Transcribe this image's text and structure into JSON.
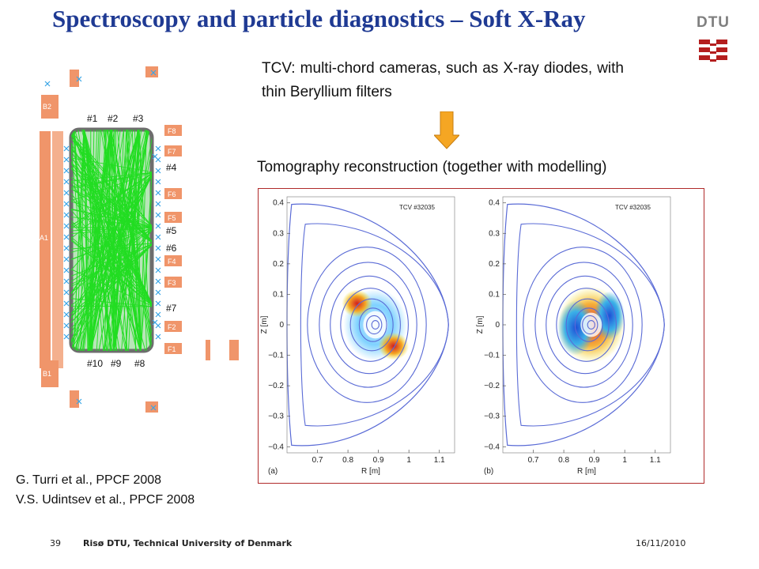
{
  "slide": {
    "title": "Spectroscopy and particle diagnostics – Soft X-Ray",
    "description": "TCV: multi-chord cameras, such as X-ray diodes, with thin Beryllium filters",
    "tomography_title": "Tomography reconstruction (together with modelling)",
    "references": [
      "G. Turri et al., PPCF 2008",
      "V.S. Udintsev et al., PPCF 2008"
    ]
  },
  "logo": {
    "text": "DTU",
    "color": "#b41e1e"
  },
  "footer": {
    "page_number": "39",
    "organization": "Risø DTU, Technical University of Denmark",
    "date": "16/11/2010"
  },
  "diagram": {
    "top_cameras": [
      "#1",
      "#2",
      "#3"
    ],
    "side_cameras": [
      "#4",
      "#5",
      "#6",
      "#7"
    ],
    "bottom_cameras": [
      "#10",
      "#9",
      "#8"
    ],
    "f_ports": [
      "F8",
      "F7",
      "F6",
      "F5",
      "F4",
      "F3",
      "F2",
      "F1"
    ],
    "other_ports": [
      "B2",
      "C2",
      "D2",
      "A1",
      "B1",
      "C1",
      "D1"
    ],
    "port_color": "#f0956a",
    "chord_color": "#22dd22"
  },
  "plots": [
    {
      "panel_label": "(a)",
      "shot_label": "TCV #32035",
      "xlabel": "R [m]",
      "ylabel": "Z [m]",
      "x_ticks": [
        "0.7",
        "0.8",
        "0.9",
        "1",
        "1.1"
      ],
      "y_ticks": [
        "0.4",
        "0.3",
        "0.2",
        "0.1",
        "0",
        "−0.1",
        "−0.2",
        "−0.3",
        "−0.4"
      ]
    },
    {
      "panel_label": "(b)",
      "shot_label": "TCV #32035",
      "xlabel": "R [m]",
      "ylabel": "Z [m]",
      "x_ticks": [
        "0.7",
        "0.8",
        "0.9",
        "1",
        "1.1"
      ],
      "y_ticks": [
        "0.4",
        "0.3",
        "0.2",
        "0.1",
        "0",
        "−0.1",
        "−0.2",
        "−0.3",
        "−0.4"
      ]
    }
  ],
  "colors": {
    "title": "#1f3a93",
    "contour": "#5a6bd6",
    "frame": "#b02a2a",
    "arrow": "#f5a623"
  }
}
